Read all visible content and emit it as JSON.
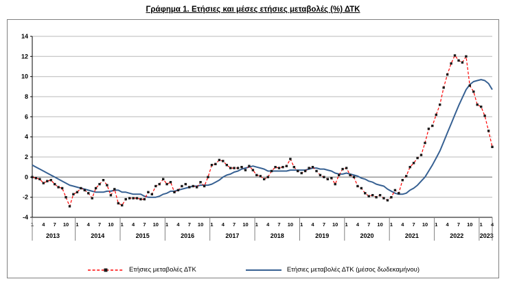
{
  "chart_data": {
    "type": "line",
    "title": "Γράφημα 1. Ετήσιες και μέσες ετήσιες μεταβολές (%) ΔΤΚ",
    "ylim": [
      -4,
      14
    ],
    "y_ticks": [
      14,
      12,
      10,
      8,
      6,
      4,
      2,
      0,
      -2,
      -4
    ],
    "years": [
      "2013",
      "2014",
      "2015",
      "2016",
      "2017",
      "2018",
      "2019",
      "2020",
      "2021",
      "2022",
      "2023"
    ],
    "months_per_year": [
      12,
      12,
      12,
      12,
      12,
      12,
      12,
      12,
      12,
      12,
      4
    ],
    "month_tick_labels": [
      "1",
      "4",
      "7",
      "10"
    ],
    "grid_color": "#b8b8b8",
    "zero_line_color": "#666666",
    "axis_color": "#000000",
    "series": [
      {
        "name": "Ετήσιες μεταβολές ΔΤΚ",
        "style": "dashed",
        "color": "#ff0000",
        "marker": "#1a1a1a",
        "values": [
          0.0,
          -0.1,
          -0.2,
          -0.6,
          -0.4,
          -0.3,
          -0.7,
          -1.0,
          -1.1,
          -2.0,
          -2.9,
          -1.7,
          -1.5,
          -1.1,
          -1.3,
          -1.6,
          -2.1,
          -1.1,
          -0.7,
          -0.3,
          -0.8,
          -1.8,
          -1.2,
          -2.6,
          -2.8,
          -2.2,
          -2.1,
          -2.1,
          -2.1,
          -2.2,
          -2.2,
          -1.5,
          -1.7,
          -0.9,
          -0.7,
          -0.2,
          -0.7,
          -0.5,
          -1.5,
          -1.3,
          -0.9,
          -0.7,
          -1.0,
          -0.9,
          -1.0,
          -0.5,
          -0.9,
          0.0,
          1.2,
          1.3,
          1.7,
          1.6,
          1.2,
          0.9,
          0.9,
          0.9,
          1.0,
          0.7,
          1.1,
          0.7,
          0.2,
          0.1,
          -0.2,
          0.0,
          0.6,
          1.0,
          0.9,
          1.0,
          1.1,
          1.8,
          1.0,
          0.6,
          0.4,
          0.6,
          0.9,
          1.0,
          0.6,
          0.2,
          0.0,
          -0.2,
          -0.1,
          -0.7,
          0.2,
          0.8,
          0.9,
          0.2,
          0.0,
          -0.9,
          -1.1,
          -1.6,
          -1.9,
          -1.8,
          -2.0,
          -1.8,
          -2.1,
          -2.3,
          -2.0,
          -1.3,
          -1.6,
          -0.3,
          0.1,
          1.0,
          1.4,
          1.9,
          2.2,
          3.4,
          4.8,
          5.1,
          6.2,
          7.2,
          8.9,
          10.2,
          11.3,
          12.1,
          11.6,
          11.4,
          12.0,
          9.1,
          8.5,
          7.2,
          7.0,
          6.1,
          4.6,
          3.0
        ]
      },
      {
        "name": "Ετήσιες μεταβολές ΔΤΚ (μέσος δωδεκαμήνου)",
        "style": "solid",
        "color": "#366092",
        "values": [
          1.2,
          1.0,
          0.8,
          0.6,
          0.4,
          0.2,
          0.0,
          -0.2,
          -0.4,
          -0.6,
          -0.8,
          -0.9,
          -1.0,
          -1.1,
          -1.2,
          -1.3,
          -1.4,
          -1.5,
          -1.5,
          -1.5,
          -1.4,
          -1.4,
          -1.3,
          -1.3,
          -1.5,
          -1.5,
          -1.6,
          -1.7,
          -1.7,
          -1.7,
          -1.9,
          -2.0,
          -2.0,
          -2.0,
          -1.9,
          -1.7,
          -1.6,
          -1.4,
          -1.4,
          -1.3,
          -1.2,
          -1.1,
          -1.0,
          -0.9,
          -0.9,
          -0.8,
          -0.8,
          -0.8,
          -0.7,
          -0.5,
          -0.3,
          0.0,
          0.2,
          0.3,
          0.5,
          0.6,
          0.8,
          0.9,
          1.0,
          1.1,
          1.0,
          0.9,
          0.8,
          0.6,
          0.6,
          0.6,
          0.6,
          0.6,
          0.6,
          0.7,
          0.7,
          0.7,
          0.7,
          0.7,
          0.8,
          0.9,
          0.9,
          0.8,
          0.8,
          0.7,
          0.6,
          0.4,
          0.3,
          0.3,
          0.4,
          0.3,
          0.2,
          0.1,
          -0.1,
          -0.2,
          -0.4,
          -0.5,
          -0.7,
          -0.8,
          -0.9,
          -1.2,
          -1.4,
          -1.6,
          -1.7,
          -1.7,
          -1.6,
          -1.3,
          -1.1,
          -0.8,
          -0.4,
          0.0,
          0.6,
          1.2,
          1.9,
          2.6,
          3.5,
          4.4,
          5.3,
          6.2,
          7.1,
          7.9,
          8.7,
          9.2,
          9.5,
          9.6,
          9.7,
          9.6,
          9.3,
          8.7
        ]
      }
    ]
  }
}
